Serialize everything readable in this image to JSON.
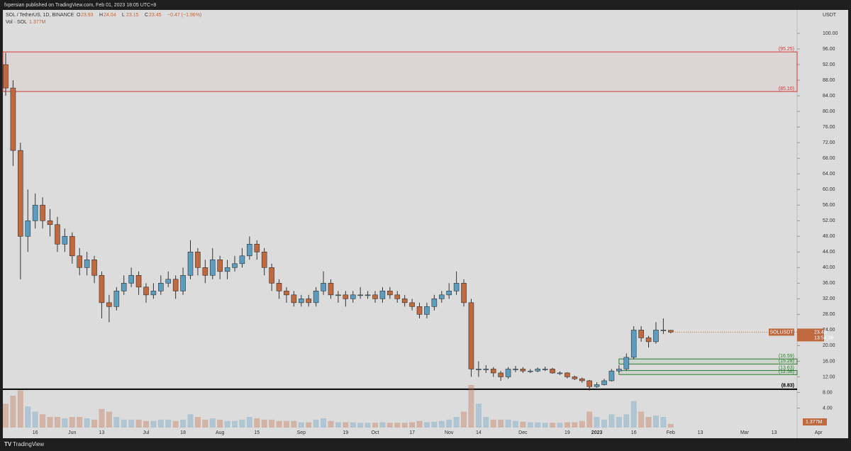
{
  "publisher_line": "fxpersian published on TradingView.com, Feb 01, 2023 18:05 UTC+8",
  "footer_brand": "TradingView",
  "chart_data": {
    "type": "candlestick",
    "symbol_line": "SOL / TetherUS, 1D, BINANCE",
    "ohlc_prefixes": {
      "open": "O",
      "high": "H",
      "low": "L",
      "close": "C"
    },
    "change": "−0.47 (−1.96%)",
    "volume_title": "Vol · SOL",
    "axis_title": "USDT",
    "up_color": "#5b9cbf",
    "down_color": "#c0683e",
    "categories": [
      null,
      null,
      null,
      null,
      "16",
      null,
      null,
      null,
      null,
      "Jun",
      null,
      null,
      null,
      "13",
      null,
      null,
      null,
      null,
      null,
      "Jul",
      null,
      null,
      null,
      null,
      "18",
      null,
      null,
      null,
      null,
      "Aug",
      null,
      null,
      null,
      null,
      "15",
      null,
      null,
      null,
      null,
      null,
      "Sep",
      null,
      null,
      null,
      null,
      null,
      "19",
      null,
      null,
      null,
      "Oct",
      null,
      null,
      null,
      null,
      "17",
      null,
      null,
      null,
      null,
      "Nov",
      null,
      null,
      null,
      "14",
      null,
      null,
      null,
      null,
      null,
      "Dec",
      null,
      null,
      null,
      null,
      null,
      "19",
      null,
      null,
      null,
      "2023",
      null,
      null,
      null,
      null,
      "16",
      null,
      null,
      null,
      null,
      "Feb",
      null,
      null,
      null,
      "13",
      null,
      null,
      null,
      null,
      null,
      "Mar",
      null,
      null,
      null,
      "13",
      null,
      null,
      null,
      null,
      null,
      "Apr"
    ],
    "open": [
      92,
      86,
      70,
      48,
      52,
      56,
      52,
      51,
      46,
      48,
      43,
      40,
      42,
      38,
      31,
      30,
      34,
      36,
      38,
      35,
      33,
      34,
      36,
      37,
      34,
      38,
      44,
      40,
      38,
      42,
      39,
      40,
      41,
      43,
      46,
      44,
      40,
      36,
      34,
      33,
      31,
      32,
      31,
      34,
      36,
      33,
      33,
      32,
      33,
      33,
      33,
      32,
      34,
      33,
      32,
      31,
      30,
      28,
      30,
      32,
      33,
      34,
      36,
      31,
      14,
      14,
      14,
      13,
      12,
      14,
      14,
      13.5,
      13.5,
      14,
      14,
      13,
      13,
      12,
      11.5,
      11,
      9.5,
      10,
      11,
      13.5,
      14,
      17,
      24,
      22,
      21,
      24,
      23.93,
      null,
      null,
      null,
      null,
      null,
      null,
      null,
      null,
      null,
      null,
      null,
      null,
      null,
      null,
      null,
      null,
      null,
      null,
      null,
      null
    ],
    "high": [
      95,
      88,
      72,
      60,
      59,
      58,
      55,
      53,
      50,
      49,
      45,
      44,
      43,
      39,
      33,
      35,
      38,
      40,
      39,
      36,
      36,
      38,
      39,
      38,
      40,
      47,
      45,
      42,
      45,
      43,
      42,
      43,
      45,
      48,
      47,
      45,
      41,
      37,
      35,
      34,
      33,
      33,
      35,
      39,
      37,
      34,
      34,
      34,
      35,
      34,
      34,
      35,
      35,
      34,
      33,
      32,
      31,
      31,
      33,
      34,
      36,
      39,
      37,
      32,
      16,
      15,
      14.5,
      13.5,
      14.5,
      14.8,
      14.5,
      14,
      14.4,
      14.6,
      14.3,
      13.4,
      13.2,
      12.3,
      11.8,
      11.2,
      10.6,
      11.5,
      14,
      15,
      18,
      25,
      25,
      22.5,
      26,
      27,
      24.04,
      null,
      null,
      null,
      null,
      null,
      null,
      null,
      null,
      null,
      null,
      null,
      null,
      null,
      null,
      null,
      null,
      null,
      null,
      null,
      null
    ],
    "low": [
      84,
      66,
      37,
      44,
      50,
      50,
      48,
      44,
      44,
      41,
      38,
      38,
      36,
      27,
      26,
      29,
      33,
      35,
      33,
      31,
      32,
      33,
      35,
      32,
      33,
      37,
      38,
      36,
      37,
      37,
      37,
      39,
      40,
      42,
      42,
      38,
      34,
      32,
      31,
      30,
      30,
      30,
      30,
      33,
      32,
      31,
      30,
      31,
      32,
      32,
      31,
      31,
      32,
      31,
      30,
      29,
      27,
      27,
      29,
      31,
      32,
      33,
      30,
      12,
      12,
      13,
      12,
      11,
      11.5,
      13.2,
      13,
      13,
      13.2,
      13.5,
      12.8,
      12.5,
      11.6,
      11.2,
      10.5,
      8.5,
      9.2,
      9.8,
      10.8,
      13,
      13.5,
      16.5,
      21,
      19.5,
      20.5,
      23,
      23.15,
      null,
      null,
      null,
      null,
      null,
      null,
      null,
      null,
      null,
      null,
      null,
      null,
      null,
      null,
      null,
      null,
      null,
      null,
      null,
      null
    ],
    "close": [
      86,
      70,
      48,
      52,
      56,
      52,
      51,
      46,
      48,
      43,
      40,
      42,
      38,
      31,
      30,
      34,
      36,
      38,
      35,
      33,
      34,
      36,
      37,
      34,
      38,
      44,
      40,
      38,
      42,
      39,
      40,
      41,
      43,
      46,
      44,
      40,
      36,
      34,
      33,
      31,
      32,
      31,
      34,
      36,
      33,
      33,
      32,
      33,
      33,
      33,
      32,
      34,
      33,
      32,
      31,
      30,
      28,
      30,
      32,
      33,
      34,
      36,
      31,
      14,
      14,
      14,
      13,
      12,
      14,
      14,
      13.5,
      13.5,
      14,
      14,
      13,
      13,
      12,
      11.5,
      11,
      9.5,
      10,
      11,
      13.5,
      14,
      17,
      24,
      22,
      21,
      24,
      24,
      23.45,
      null,
      null,
      null,
      null,
      null,
      null,
      null,
      null,
      null,
      null,
      null,
      null,
      null,
      null,
      null,
      null,
      null,
      null,
      null,
      null
    ],
    "volume": [
      9,
      12,
      14,
      8,
      6,
      5,
      4,
      4,
      3.5,
      4,
      4,
      3.5,
      3,
      7,
      6,
      4,
      3,
      3,
      3,
      2.5,
      2.5,
      3,
      3,
      2.5,
      3,
      5,
      4,
      3,
      3.5,
      3,
      2.5,
      2.5,
      3,
      4,
      3.5,
      3,
      3,
      2.5,
      2.5,
      2.5,
      2,
      2,
      3,
      3.5,
      2.5,
      2,
      2,
      2,
      1.8,
      1.8,
      1.8,
      2,
      1.8,
      1.8,
      1.8,
      2,
      2.5,
      2,
      2.2,
      2.5,
      3,
      4,
      6,
      16,
      9,
      4,
      3,
      3,
      3,
      2.5,
      2.2,
      2,
      2,
      1.8,
      1.8,
      1.8,
      2,
      2,
      2.5,
      6,
      4,
      3,
      5,
      4,
      5,
      10,
      6,
      4,
      4.5,
      4,
      1.377,
      null,
      null,
      null,
      null,
      null,
      null,
      null,
      null,
      null,
      null,
      null,
      null,
      null,
      null,
      null,
      null,
      null,
      null,
      null,
      null
    ],
    "volume_last_label": "1.377M",
    "price_tag": {
      "name": "SOLUSDT",
      "countdown": "13:54:36"
    },
    "ylim": [
      -1,
      106
    ],
    "yticks": [
      {
        "value": 4,
        "label": "4.00"
      },
      {
        "value": 8,
        "label": "8.00"
      },
      {
        "value": 12,
        "label": "12.00"
      },
      {
        "value": 16,
        "label": "16.00"
      },
      {
        "value": 20,
        "label": "20.00"
      },
      {
        "value": 24,
        "label": "24.00"
      },
      {
        "value": 28,
        "label": "28.00"
      },
      {
        "value": 32,
        "label": "32.00"
      },
      {
        "value": 36,
        "label": "36.00"
      },
      {
        "value": 40,
        "label": "40.00"
      },
      {
        "value": 44,
        "label": "44.00"
      },
      {
        "value": 48,
        "label": "48.00"
      },
      {
        "value": 52,
        "label": "52.00"
      },
      {
        "value": 56,
        "label": "56.00"
      },
      {
        "value": 60,
        "label": "60.00"
      },
      {
        "value": 64,
        "label": "64.00"
      },
      {
        "value": 68,
        "label": "68.00"
      },
      {
        "value": 72,
        "label": "72.00"
      },
      {
        "value": 76,
        "label": "76.00"
      },
      {
        "value": 80,
        "label": "80.00"
      },
      {
        "value": 84,
        "label": "84.00"
      },
      {
        "value": 88,
        "label": "88.00"
      },
      {
        "value": 92,
        "label": "92.00"
      },
      {
        "value": 96,
        "label": "96.00"
      },
      {
        "value": 100,
        "label": "100.00"
      }
    ],
    "zones": [
      {
        "top": {
          "value": 95.25,
          "label": "(95.25)"
        },
        "bottom": {
          "value": 85.1,
          "label": "(85.10)"
        },
        "color": "#d03a3a"
      },
      {
        "top": {
          "value": 16.59,
          "label": "(16.59)"
        },
        "bottom": {
          "value": 15.28,
          "label": "(15.28)"
        },
        "color": "#2e7d32"
      },
      {
        "top": {
          "value": 13.63,
          "label": "(13.63)"
        },
        "bottom": {
          "value": 12.58,
          "label": "(12.58)"
        },
        "color": "#2e7d32"
      }
    ],
    "level_line": {
      "value": 8.83,
      "label": "(8.83)",
      "color": "#000000"
    }
  }
}
